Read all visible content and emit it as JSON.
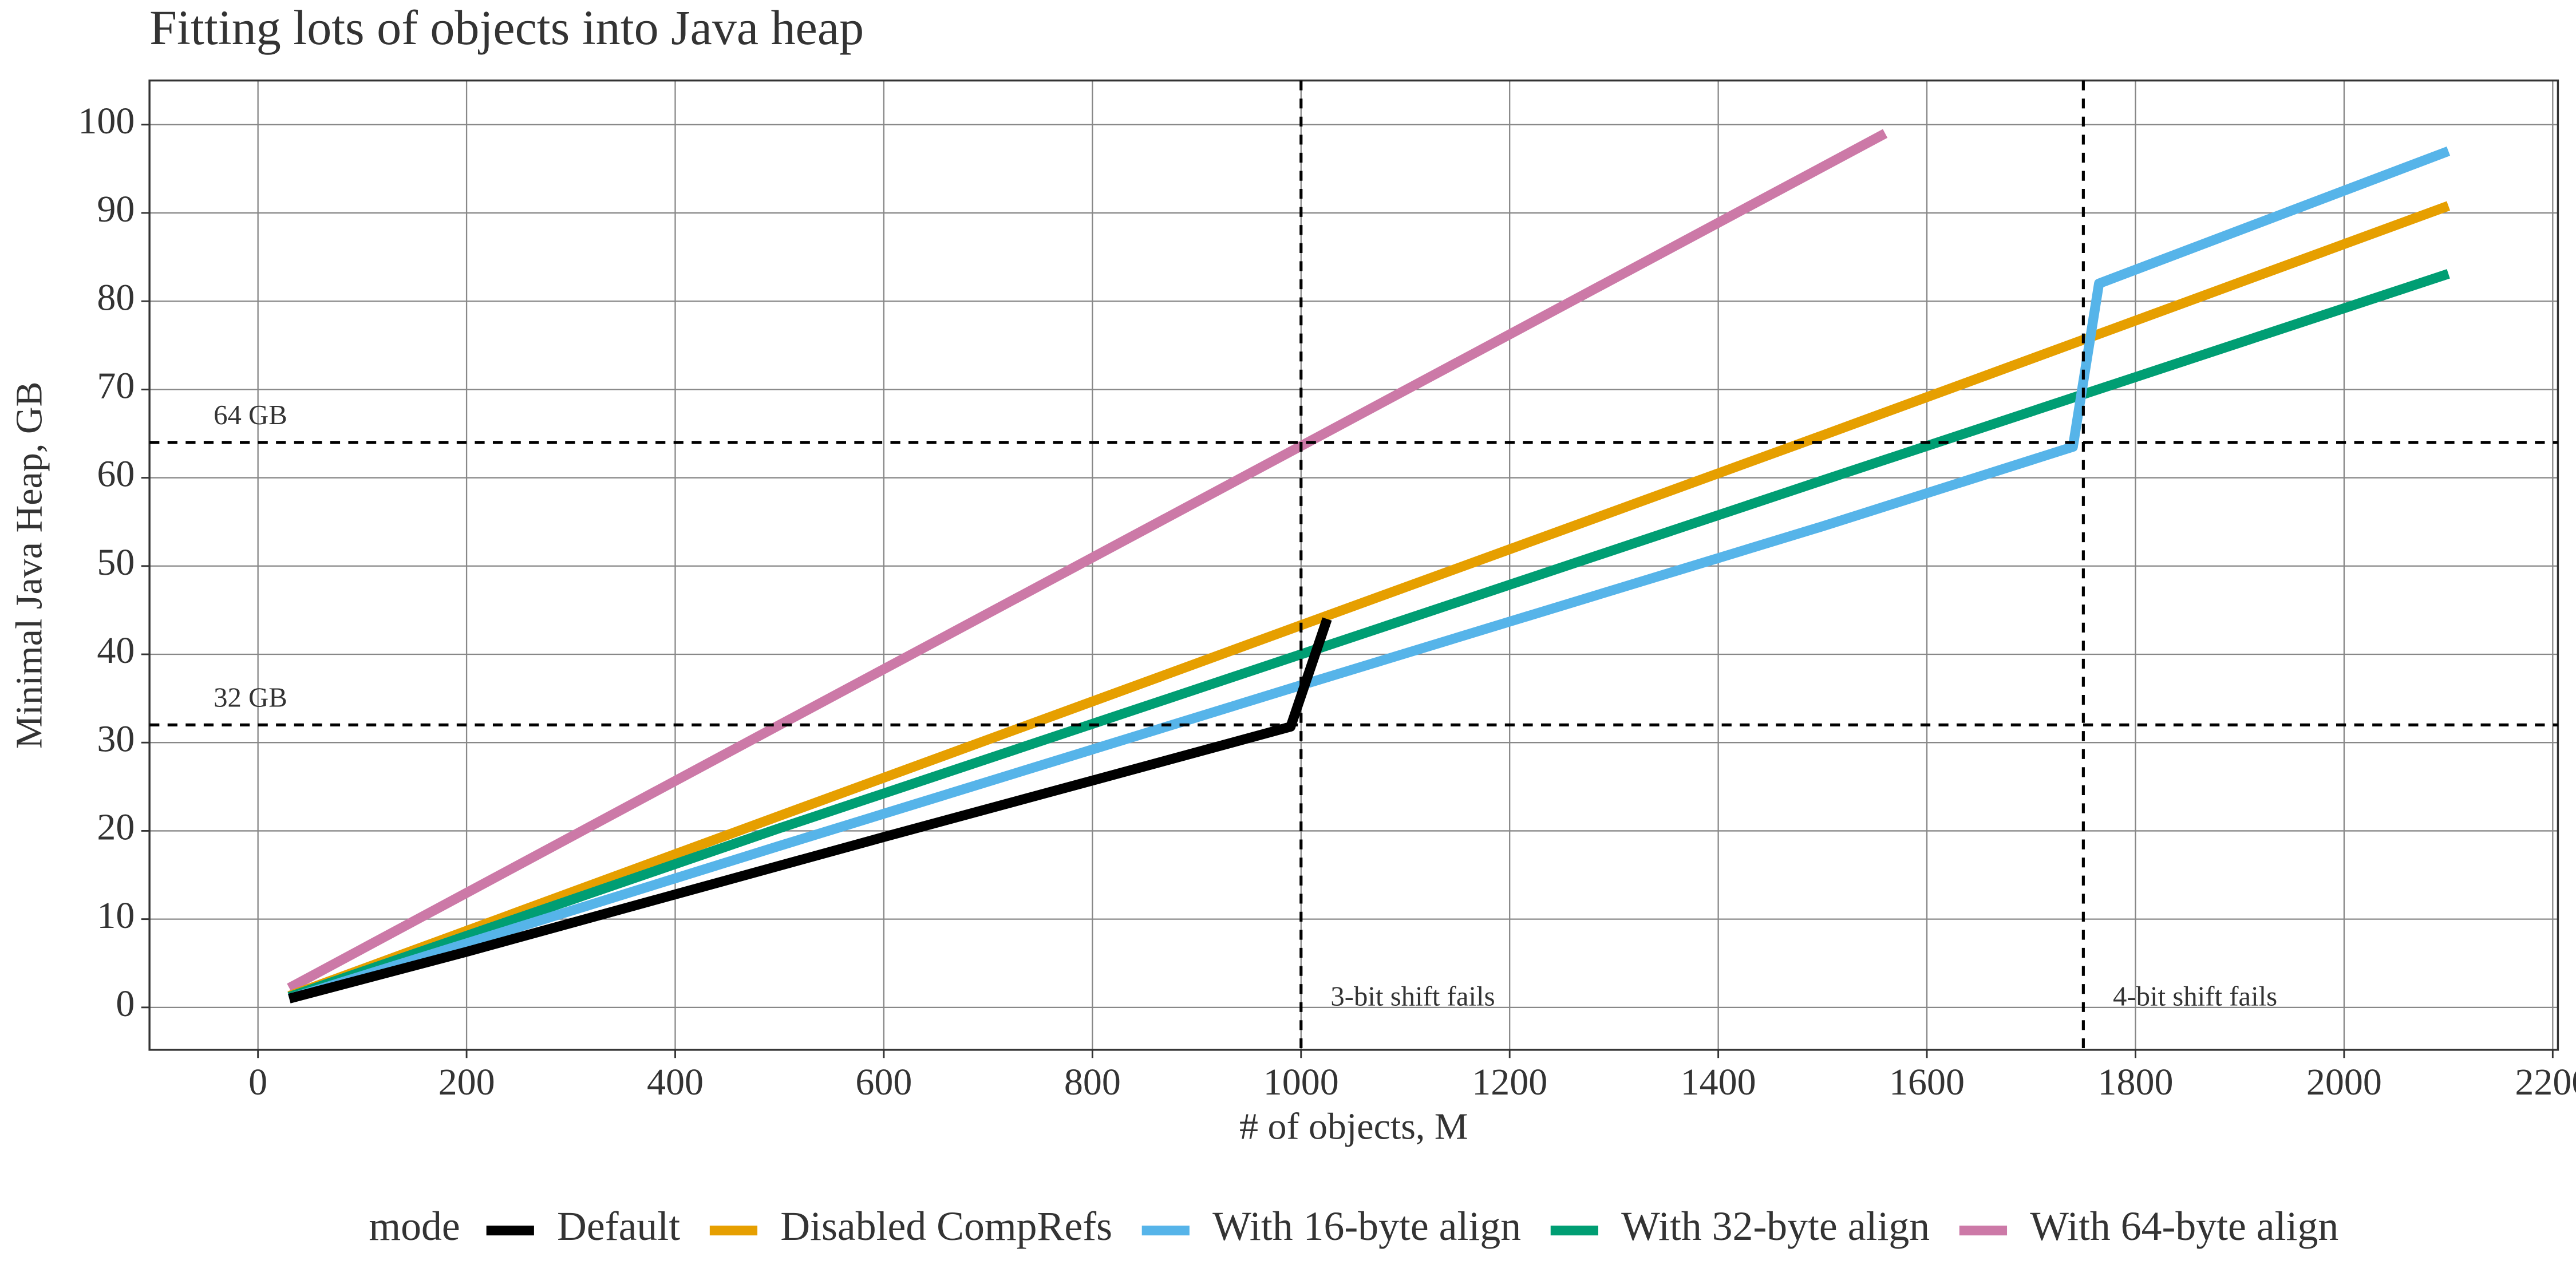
{
  "chart_data": {
    "type": "line",
    "title": "Fitting lots of objects into Java heap",
    "x_label": "# of objects, M",
    "y_label": "Minimal Java Heap, GB",
    "legend_title": "mode",
    "legend_position": "bottom",
    "grid": true,
    "xlim": [
      -104,
      2205
    ],
    "ylim": [
      -4.8,
      105
    ],
    "xticks": [
      0,
      200,
      400,
      600,
      800,
      1000,
      1200,
      1400,
      1600,
      1800,
      2000,
      2200
    ],
    "yticks": [
      0,
      10,
      20,
      30,
      40,
      50,
      60,
      70,
      80,
      90,
      100
    ],
    "reference_lines": [
      {
        "axis": "y",
        "value": 32,
        "label": "32 GB"
      },
      {
        "axis": "y",
        "value": 64,
        "label": "64 GB"
      },
      {
        "axis": "x",
        "value": 1000,
        "label": "3-bit shift fails"
      },
      {
        "axis": "x",
        "value": 1750,
        "label": "4-bit shift fails"
      }
    ],
    "series": [
      {
        "name": "With 64-byte align",
        "color": "#CC79A7",
        "x": [
          30,
          500,
          1000,
          1560
        ],
        "values": [
          2.2,
          32,
          63.6,
          99
        ]
      },
      {
        "name": "Disabled CompRefs",
        "color": "#E69F00",
        "x": [
          30,
          500,
          1000,
          1500,
          2100
        ],
        "values": [
          1.3,
          21.7,
          43.3,
          64.8,
          90.8
        ]
      },
      {
        "name": "With 32-byte align",
        "color": "#009E73",
        "x": [
          30,
          500,
          1000,
          1500,
          2100
        ],
        "values": [
          1.2,
          20.3,
          40,
          59.7,
          83.1
        ]
      },
      {
        "name": "With 16-byte align",
        "color": "#56B4E9",
        "x": [
          30,
          500,
          1000,
          1500,
          1740,
          1765,
          2100
        ],
        "values": [
          1,
          18.3,
          36.5,
          54.5,
          63.5,
          82,
          97
        ]
      },
      {
        "name": "Default",
        "color": "#000000",
        "x": [
          30,
          200,
          400,
          600,
          800,
          990,
          1025
        ],
        "values": [
          1,
          6.3,
          12.8,
          19.3,
          25.7,
          31.8,
          44
        ]
      }
    ],
    "legend_order": [
      4,
      1,
      3,
      2,
      0
    ]
  }
}
